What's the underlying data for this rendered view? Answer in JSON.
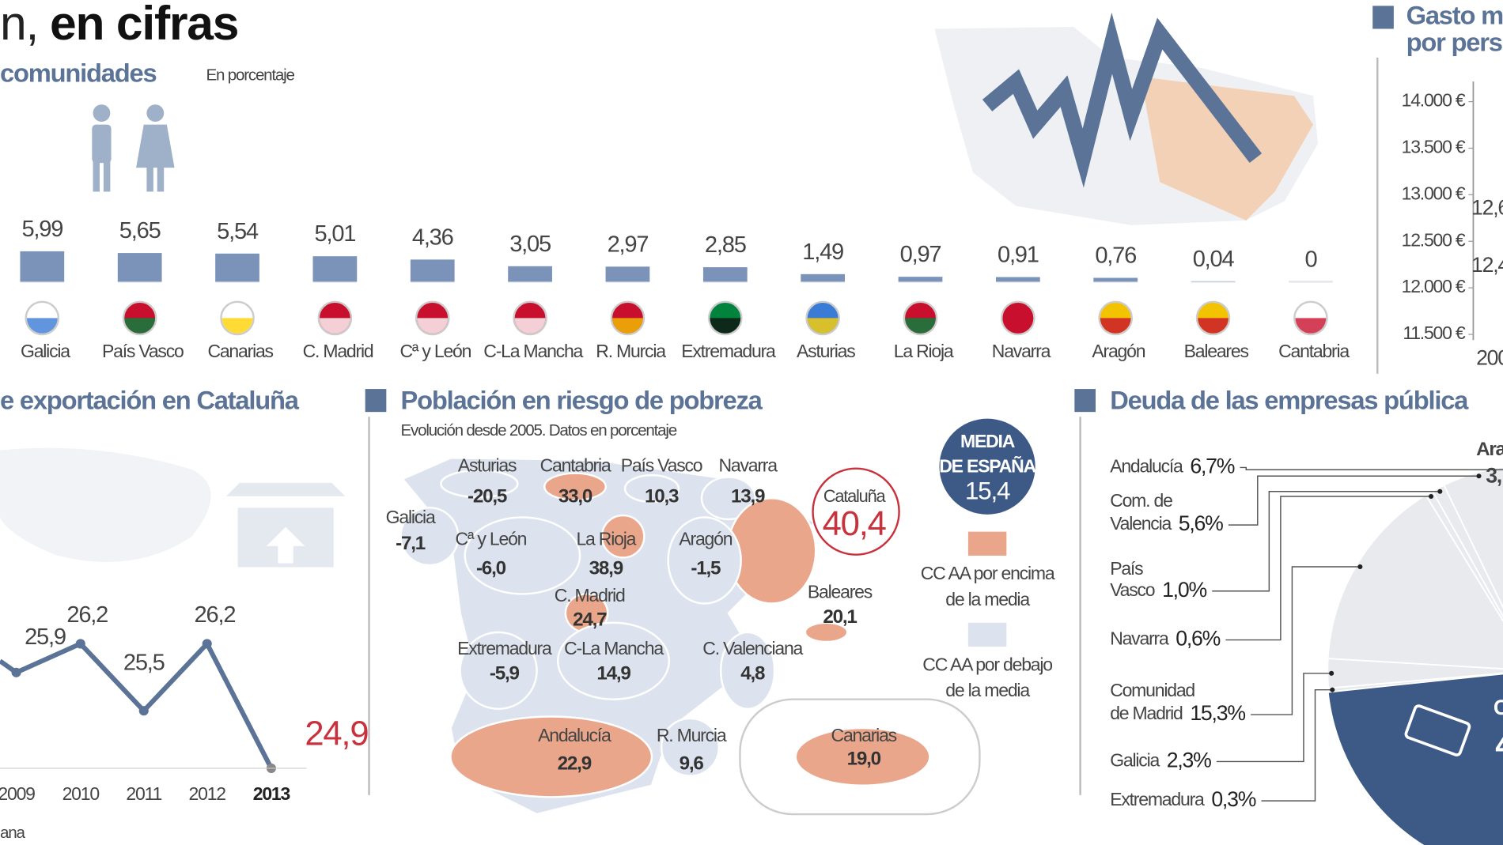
{
  "header": {
    "title_light": "n,",
    "title_bold": "en cifras"
  },
  "chart_data": [
    {
      "type": "bar",
      "title": "comunidades",
      "subtitle": "En porcentaje",
      "categories": [
        "Galicia",
        "País Vasco",
        "Canarias",
        "C. Madrid",
        "Cª y León",
        "C-La Mancha",
        "R. Murcia",
        "Extremadura",
        "Asturias",
        "La Rioja",
        "Navarra",
        "Aragón",
        "Baleares",
        "Cantabria"
      ],
      "values": [
        5.99,
        5.65,
        5.54,
        5.01,
        4.36,
        3.05,
        2.97,
        2.85,
        1.49,
        0.97,
        0.91,
        0.76,
        0.04,
        0
      ],
      "value_labels": [
        "5,99",
        "5,65",
        "5,54",
        "5,01",
        "4,36",
        "3,05",
        "2,97",
        "2,85",
        "1,49",
        "0,97",
        "0,91",
        "0,76",
        "0,04",
        "0"
      ],
      "color": "#7b93b8"
    },
    {
      "type": "line",
      "title": "e exportación en Cataluña",
      "categories": [
        "2009",
        "2010",
        "2011",
        "2012",
        "2013"
      ],
      "values": [
        25.9,
        26.2,
        25.5,
        26.2,
        24.9
      ],
      "value_labels": [
        "25,9",
        "26,2",
        "25,5",
        "26,2",
        "24,9"
      ],
      "color": "#5b7397",
      "highlight_color": "#c8323c",
      "source": "ana"
    },
    {
      "type": "map",
      "title": "Población en riesgo de pobreza",
      "subtitle": "Evolución desde 2005. Datos en porcentaje",
      "categories": [
        "Galicia",
        "Asturias",
        "Cantabria",
        "País Vasco",
        "Navarra",
        "Cataluña",
        "Cª y León",
        "La Rioja",
        "Aragón",
        "C. Madrid",
        "Baleares",
        "Extremadura",
        "C-La Mancha",
        "C. Valenciana",
        "Andalucía",
        "R. Murcia",
        "Canarias"
      ],
      "values": [
        -7.1,
        -20.5,
        33.0,
        10.3,
        13.9,
        40.4,
        -6.0,
        38.9,
        -1.5,
        24.7,
        20.1,
        -5.9,
        14.9,
        4.8,
        22.9,
        9.6,
        19.0
      ],
      "value_labels": [
        "-7,1",
        "-20,5",
        "33,0",
        "10,3",
        "13,9",
        "40,4",
        "-6,0",
        "38,9",
        "-1,5",
        "24,7",
        "20,1",
        "-5,9",
        "14,9",
        "4,8",
        "22,9",
        "9,6",
        "19,0"
      ],
      "mean": 15.4,
      "mean_title": [
        "MEDIA",
        "DE ESPAÑA"
      ],
      "mean_label": "15,4",
      "mean_color": "#3d5a86",
      "legend": [
        {
          "label": [
            "CC AA por encima",
            "de la media"
          ],
          "color": "#e9a68b"
        },
        {
          "label": [
            "CC AA por debajo",
            "de la media"
          ],
          "color": "#dde3ee"
        }
      ]
    },
    {
      "type": "pie",
      "title": "Deuda de las empresas pública",
      "categories": [
        [
          "Andalucía"
        ],
        [
          "Com. de",
          "Valencia"
        ],
        [
          "País",
          "Vasco"
        ],
        [
          "Navarra"
        ],
        [
          "Comunidad",
          "de Madrid"
        ],
        [
          "Galicia"
        ],
        [
          "Extremadura"
        ]
      ],
      "values": [
        6.7,
        5.6,
        1.0,
        0.6,
        15.3,
        2.3,
        0.3
      ],
      "value_labels": [
        "6,7%",
        "5,6%",
        "1,0%",
        "0,6%",
        "15,3%",
        "2,3%",
        "0,3%"
      ],
      "color": "#e8eaee",
      "other_color": "#3d5a86",
      "annotations": [
        "Ara",
        "3,",
        "C",
        "4"
      ]
    },
    {
      "type": "line",
      "title": [
        "Gasto m",
        "por pers"
      ],
      "ylim": [
        11500,
        14000
      ],
      "yticks": [
        {
          "value": 14000,
          "label": "14.000 €"
        },
        {
          "value": 13500,
          "label": "13.500 €"
        },
        {
          "value": 13000,
          "label": "13.000 €"
        },
        {
          "value": 12500,
          "label": "12.500 €"
        },
        {
          "value": 12000,
          "label": "12.000 €"
        },
        {
          "value": 11500,
          "label": "11.500 €"
        }
      ],
      "annotations": [
        "12,6",
        "12,4",
        "200"
      ]
    }
  ]
}
